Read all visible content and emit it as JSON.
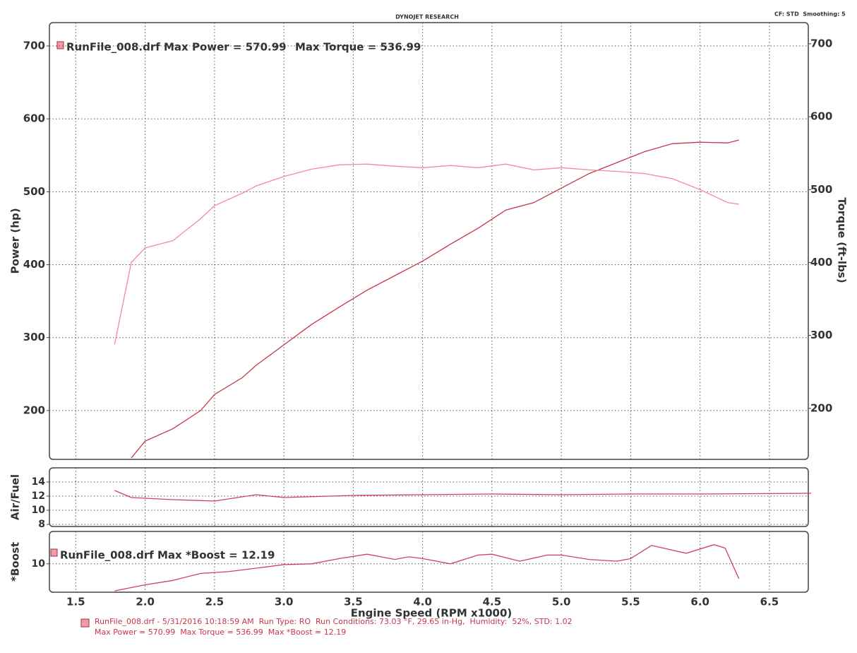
{
  "header": {
    "title": "DYNOJET RESEARCH",
    "settings": "CF: STD  Smoothing: 5"
  },
  "footer": {
    "line1": "RunFile_008.drf - 5/31/2016 10:18:59 AM  Run Type: RO  Run Conditions: 73.03 °F, 29.65 in-Hg,  Humidity:  52%, STD: 1.02",
    "line2": "Max Power = 570.99  Max Torque = 536.99  Max *Boost = 12.19"
  },
  "chart_data": [
    {
      "type": "line",
      "annotations": [
        "RunFile_008.drf Max Power = 570.99",
        "Max Torque = 536.99"
      ],
      "y_label": "Power (hp)",
      "y2_label": "Torque (ft-lbs)",
      "xlim": [
        1.31,
        6.78
      ],
      "xticks": [
        1.5,
        2,
        2.5,
        3,
        3.5,
        4,
        4.5,
        5,
        5.5,
        6,
        6.5
      ],
      "ylim": [
        133,
        732
      ],
      "yticks": [
        200,
        300,
        400,
        500,
        600,
        700
      ],
      "y2lim": [
        130,
        729
      ],
      "y2ticks": [
        200,
        300,
        400,
        500,
        600,
        700
      ],
      "grid": true,
      "series": [
        {
          "color": "#c8364a",
          "x": [
            1.9,
            2.0,
            2.2,
            2.4,
            2.5,
            2.7,
            2.8,
            3.0,
            3.2,
            3.4,
            3.6,
            3.8,
            4.0,
            4.2,
            4.4,
            4.6,
            4.8,
            5.0,
            5.2,
            5.4,
            5.6,
            5.8,
            6.0,
            6.2,
            6.28
          ],
          "values": [
            135,
            158,
            175,
            200,
            222,
            245,
            262,
            290,
            318,
            342,
            365,
            385,
            405,
            428,
            450,
            475,
            485,
            505,
            525,
            540,
            555,
            566,
            568,
            567,
            571
          ]
        },
        {
          "color": "#f08aa0",
          "axis": "y2",
          "x": [
            1.78,
            1.9,
            2.0,
            2.2,
            2.4,
            2.5,
            2.7,
            2.8,
            3.0,
            3.2,
            3.4,
            3.6,
            3.8,
            4.0,
            4.2,
            4.4,
            4.6,
            4.8,
            5.0,
            5.2,
            5.4,
            5.6,
            5.8,
            6.0,
            6.2,
            6.28
          ],
          "values": [
            288,
            400,
            420,
            430,
            460,
            478,
            495,
            505,
            518,
            528,
            534,
            535,
            532,
            530,
            533,
            530,
            535,
            527,
            530,
            527,
            525,
            522,
            515,
            500,
            482,
            480
          ]
        }
      ]
    },
    {
      "type": "line",
      "y_label": "Air/Fuel",
      "xlim": [
        1.31,
        6.78
      ],
      "xticks": [
        1.5,
        2,
        2.5,
        3,
        3.5,
        4,
        4.5,
        5,
        5.5,
        6,
        6.5
      ],
      "ylim": [
        7.7,
        16
      ],
      "yticks": [
        8,
        10,
        12,
        14
      ],
      "grid": true,
      "series": [
        {
          "color": "#d0405a",
          "x": [
            1.78,
            1.9,
            2.2,
            2.5,
            2.8,
            3.0,
            3.5,
            4.0,
            4.5,
            5.0,
            5.5,
            6.0,
            6.8
          ],
          "values": [
            12.8,
            11.8,
            11.5,
            11.3,
            12.2,
            11.8,
            12.1,
            12.2,
            12.3,
            12.2,
            12.3,
            12.3,
            12.4
          ]
        }
      ]
    },
    {
      "type": "line",
      "y_label": "*Boost",
      "annotations": [
        "RunFile_008.drf Max *Boost = 12.19"
      ],
      "x_label": "Engine Speed (RPM x1000)",
      "xlim": [
        1.31,
        6.78
      ],
      "xticks": [
        1.5,
        {
          "value": 2,
          "label": "2.0"
        },
        2.5,
        {
          "value": 3,
          "label": "3.0"
        },
        3.5,
        {
          "value": 4,
          "label": "4.0"
        },
        4.5,
        {
          "value": 5,
          "label": "5.0"
        },
        5.5,
        {
          "value": 6,
          "label": "6.0"
        },
        6.5
      ],
      "ylim": [
        6.75,
        13.7
      ],
      "yticks": [
        10
      ],
      "grid": true,
      "series": [
        {
          "color": "#d0405a",
          "x": [
            1.78,
            2.0,
            2.2,
            2.4,
            2.6,
            2.8,
            3.0,
            3.2,
            3.4,
            3.6,
            3.8,
            3.9,
            4.0,
            4.2,
            4.4,
            4.5,
            4.7,
            4.9,
            5.0,
            5.2,
            5.4,
            5.5,
            5.65,
            5.9,
            6.1,
            6.18,
            6.28
          ],
          "values": [
            6.9,
            7.6,
            8.1,
            8.9,
            9.1,
            9.5,
            9.9,
            10.0,
            10.6,
            11.1,
            10.5,
            10.8,
            10.6,
            10.0,
            11.0,
            11.1,
            10.3,
            11.0,
            11.0,
            10.5,
            10.3,
            10.6,
            12.1,
            11.2,
            12.19,
            11.8,
            8.3
          ]
        }
      ]
    }
  ]
}
